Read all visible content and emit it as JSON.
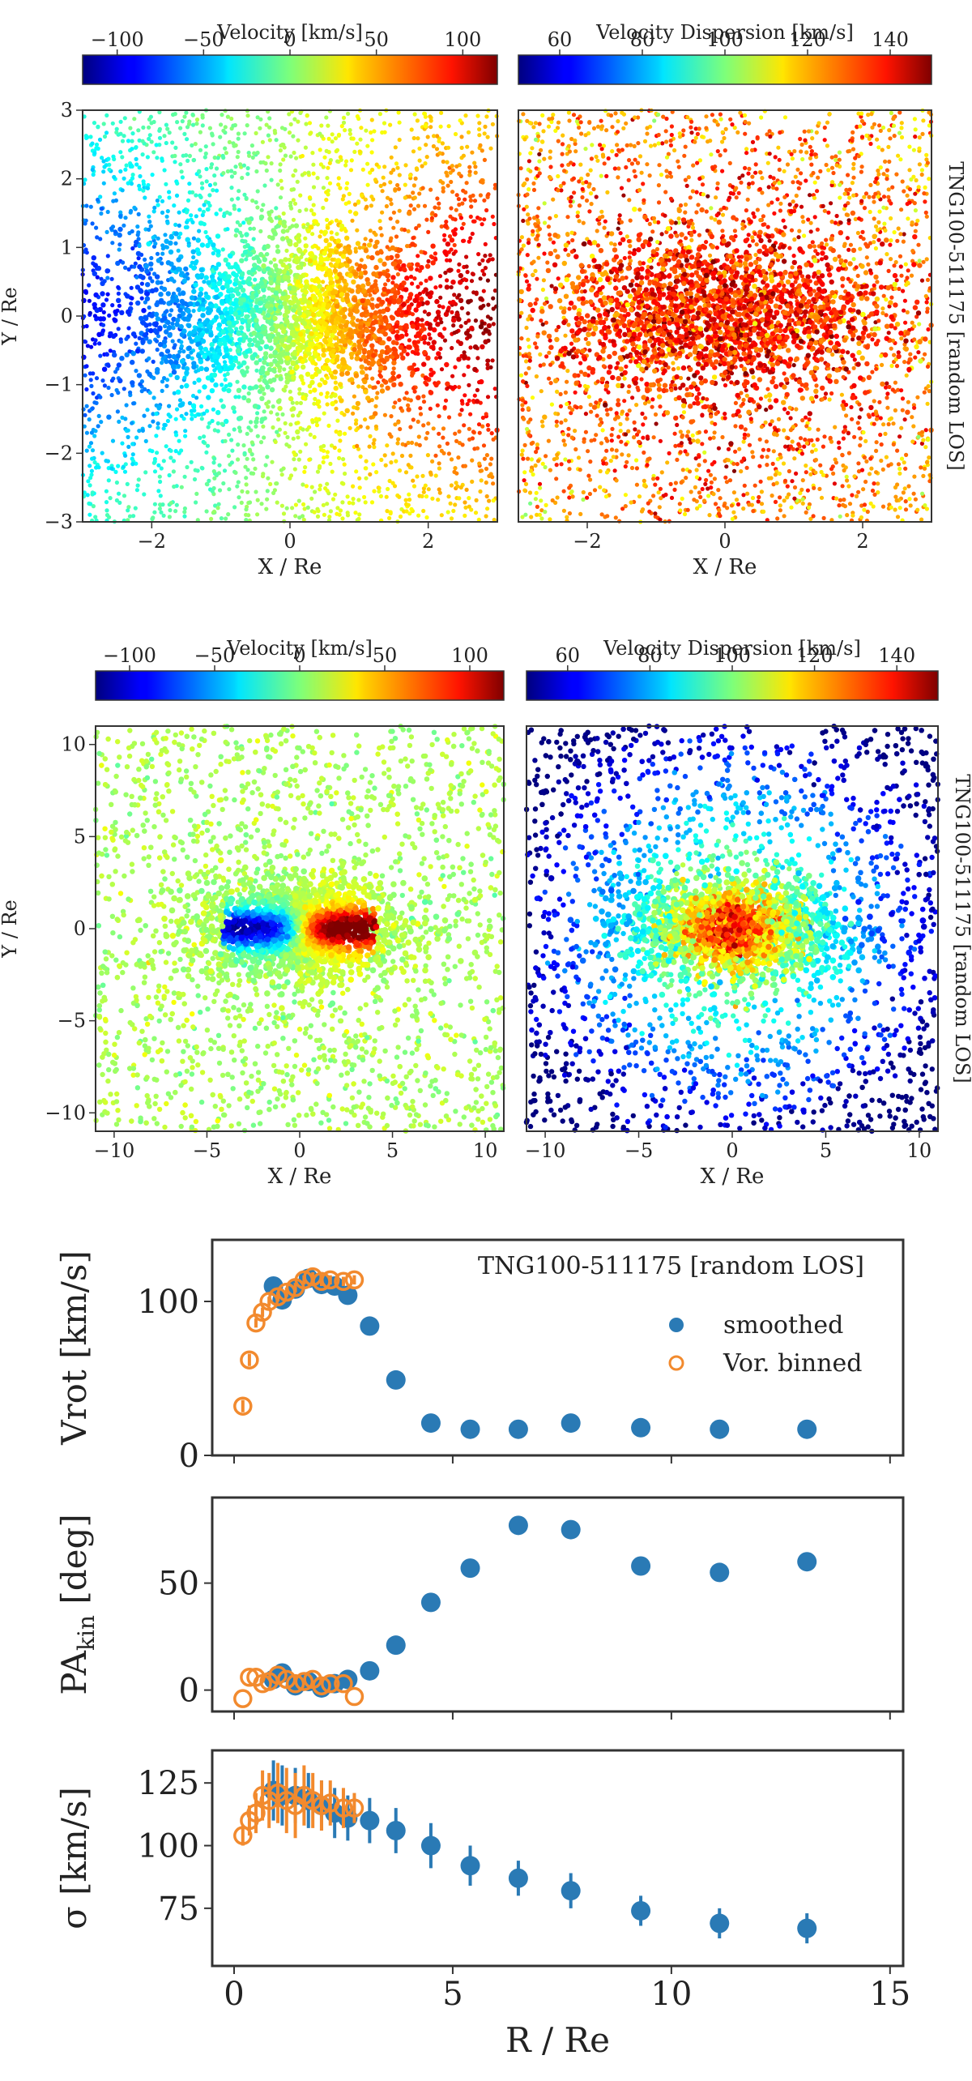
{
  "figure_title": "TNG100-511175 [random LOS]",
  "colors": {
    "smoothed": "#2a7ab5",
    "vor_binned": "#f28a2e",
    "frame": "#333333"
  },
  "chart_data": [
    {
      "id": "vel_map_top",
      "type": "scatter",
      "title": "Velocity [km/s]",
      "xlabel": "X / Re",
      "ylabel": "Y / Re",
      "xlim": [
        -3,
        3
      ],
      "ylim": [
        -3,
        3
      ],
      "xticks": [
        "−2",
        "0",
        "2"
      ],
      "yticks": [
        "−3",
        "−2",
        "−1",
        "0",
        "1",
        "2",
        "3"
      ],
      "colorbar": {
        "label": "Velocity [km/s]",
        "range": [
          -120,
          120
        ],
        "ticks": [
          "−100",
          "−50",
          "0",
          "50",
          "100"
        ],
        "tick_values": [
          -100,
          -50,
          0,
          50,
          100
        ]
      }
    },
    {
      "id": "disp_map_top",
      "type": "scatter",
      "title": "Velocity Dispersion [km/s]",
      "xlabel": "X / Re",
      "ylabel": "",
      "xlim": [
        -3,
        3
      ],
      "ylim": [
        -3,
        3
      ],
      "xticks": [
        "−2",
        "0",
        "2"
      ],
      "side_label": "TNG100-511175 [random LOS]",
      "colorbar": {
        "label": "Velocity Dispersion [km/s]",
        "range": [
          50,
          150
        ],
        "ticks": [
          "60",
          "80",
          "100",
          "120",
          "140"
        ],
        "tick_values": [
          60,
          80,
          100,
          120,
          140
        ]
      }
    },
    {
      "id": "vel_map_mid",
      "type": "scatter",
      "title": "Velocity [km/s]",
      "xlabel": "X / Re",
      "ylabel": "Y / Re",
      "xlim": [
        -11,
        11
      ],
      "ylim": [
        -11,
        11
      ],
      "xticks": [
        "−10",
        "−5",
        "0",
        "5",
        "10"
      ],
      "yticks": [
        "−10",
        "−5",
        "0",
        "5",
        "10"
      ],
      "colorbar": {
        "label": "Velocity [km/s]",
        "range": [
          -120,
          120
        ],
        "ticks": [
          "−100",
          "−50",
          "0",
          "50",
          "100"
        ],
        "tick_values": [
          -100,
          -50,
          0,
          50,
          100
        ]
      }
    },
    {
      "id": "disp_map_mid",
      "type": "scatter",
      "title": "Velocity Dispersion [km/s]",
      "xlabel": "X / Re",
      "ylabel": "",
      "xlim": [
        -11,
        11
      ],
      "ylim": [
        -11,
        11
      ],
      "xticks": [
        "−10",
        "−5",
        "0",
        "5",
        "10"
      ],
      "side_label": "TNG100-511175 [random LOS]",
      "colorbar": {
        "label": "Velocity Dispersion [km/s]",
        "range": [
          50,
          150
        ],
        "ticks": [
          "60",
          "80",
          "100",
          "120",
          "140"
        ],
        "tick_values": [
          60,
          80,
          100,
          120,
          140
        ]
      }
    },
    {
      "id": "vrot_profile",
      "type": "scatter",
      "title": "TNG100-511175 [random LOS]",
      "xlabel": "",
      "ylabel": "Vrot [km/s]",
      "xlim": [
        -0.5,
        15.3
      ],
      "ylim": [
        0,
        140
      ],
      "yticks": [
        "0",
        "100"
      ],
      "legend": {
        "position": "top-right",
        "entries": [
          "smoothed",
          "Vor. binned"
        ]
      },
      "series": [
        {
          "name": "smoothed",
          "x": [
            0.9,
            1.1,
            1.4,
            1.7,
            2.0,
            2.3,
            2.6,
            3.1,
            3.7,
            4.5,
            5.4,
            6.5,
            7.7,
            9.3,
            11.1,
            13.1
          ],
          "y": [
            110,
            101,
            108,
            115,
            111,
            110,
            104,
            84,
            49,
            21,
            17,
            17,
            21,
            18,
            17,
            17
          ]
        },
        {
          "name": "Vor. binned",
          "x": [
            0.2,
            0.35,
            0.5,
            0.65,
            0.8,
            1.0,
            1.2,
            1.4,
            1.6,
            1.8,
            2.0,
            2.2,
            2.5,
            2.75
          ],
          "y": [
            32,
            62,
            86,
            93,
            100,
            103,
            106,
            109,
            114,
            116,
            113,
            114,
            113,
            114
          ],
          "err": [
            4,
            4,
            3,
            3,
            3,
            3,
            3,
            3,
            3,
            3,
            3,
            3,
            3,
            3
          ]
        }
      ]
    },
    {
      "id": "pa_profile",
      "type": "scatter",
      "title": "",
      "xlabel": "",
      "ylabel": "PA",
      "ylabel_sub": "kin",
      "ylabel_unit": " [deg]",
      "xlim": [
        -0.5,
        15.3
      ],
      "ylim": [
        -10,
        90
      ],
      "yticks": [
        "0",
        "50"
      ],
      "series": [
        {
          "name": "smoothed",
          "x": [
            0.9,
            1.1,
            1.4,
            1.7,
            2.0,
            2.3,
            2.6,
            3.1,
            3.7,
            4.5,
            5.4,
            6.5,
            7.7,
            9.3,
            11.1,
            13.1
          ],
          "y": [
            5,
            8,
            2,
            4,
            1,
            3,
            5,
            9,
            21,
            41,
            57,
            77,
            75,
            58,
            55,
            60
          ]
        },
        {
          "name": "Vor. binned",
          "x": [
            0.2,
            0.35,
            0.5,
            0.65,
            0.8,
            1.0,
            1.2,
            1.4,
            1.6,
            1.8,
            2.0,
            2.2,
            2.5,
            2.75
          ],
          "y": [
            -4,
            6,
            6,
            3,
            4,
            7,
            5,
            3,
            4,
            5,
            2,
            3,
            3,
            -3
          ]
        }
      ]
    },
    {
      "id": "sigma_profile",
      "type": "scatter",
      "title": "",
      "xlabel": "R / Re",
      "ylabel": "σ [km/s]",
      "xlim": [
        -0.5,
        15.3
      ],
      "ylim": [
        52,
        138
      ],
      "xticks": [
        "0",
        "5",
        "10",
        "15"
      ],
      "yticks": [
        "75",
        "100",
        "125"
      ],
      "series": [
        {
          "name": "smoothed",
          "x": [
            0.9,
            1.1,
            1.4,
            1.7,
            2.0,
            2.3,
            2.6,
            3.1,
            3.7,
            4.5,
            5.4,
            6.5,
            7.7,
            9.3,
            11.1,
            13.1
          ],
          "y": [
            122,
            120,
            120,
            118,
            116,
            113,
            111,
            110,
            106,
            100,
            92,
            87,
            82,
            74,
            69,
            67
          ],
          "err": [
            12,
            12,
            11,
            11,
            10,
            10,
            9,
            9,
            9,
            9,
            8,
            7,
            7,
            6,
            6,
            6
          ]
        },
        {
          "name": "Vor. binned",
          "x": [
            0.2,
            0.35,
            0.5,
            0.65,
            0.8,
            1.0,
            1.2,
            1.4,
            1.6,
            1.8,
            2.0,
            2.2,
            2.5,
            2.75
          ],
          "y": [
            104,
            110,
            113,
            120,
            118,
            121,
            118,
            116,
            120,
            118,
            116,
            117,
            115,
            115
          ],
          "err": [
            4,
            6,
            8,
            10,
            11,
            12,
            13,
            13,
            12,
            11,
            10,
            9,
            8,
            6
          ]
        }
      ]
    }
  ]
}
